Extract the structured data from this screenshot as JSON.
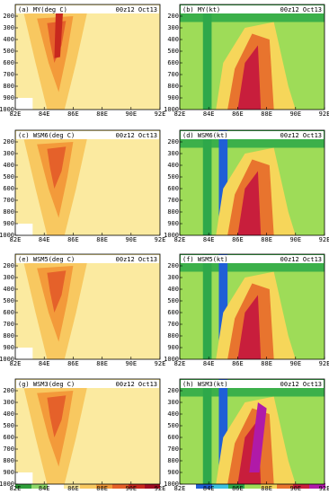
{
  "panels": [
    {
      "title": "(a) MY(deg C)",
      "time": "00z12 Oct13"
    },
    {
      "title": "(b) MY(kt)",
      "time": "00z12 Oct13"
    },
    {
      "title": "(c) WSM6(deg C)",
      "time": "00z12 Oct13"
    },
    {
      "title": "(d) WSM6(kt)",
      "time": "00z12 Oct13"
    },
    {
      "title": "(e) WSM5(deg C)",
      "time": "00z12 Oct13"
    },
    {
      "title": "(f) WSM5(kt)",
      "time": "00z12 Oct13"
    },
    {
      "title": "(g) WSM3(deg C)",
      "time": "00z12 Oct13"
    },
    {
      "title": "(h) WSM3(kt)",
      "time": "00z12 Oct13"
    }
  ],
  "ylim": [
    1000,
    100
  ],
  "yticks": [
    200,
    300,
    400,
    500,
    600,
    700,
    800,
    900,
    1000
  ],
  "xlim": [
    82,
    92
  ],
  "xticks": [
    {
      "value": 82,
      "label": "82E"
    },
    {
      "value": 84,
      "label": "84E"
    },
    {
      "value": 86,
      "label": "86E"
    },
    {
      "value": 88,
      "label": "88E"
    },
    {
      "value": 90,
      "label": "90E"
    },
    {
      "value": 92,
      "label": "92E"
    }
  ]
}
